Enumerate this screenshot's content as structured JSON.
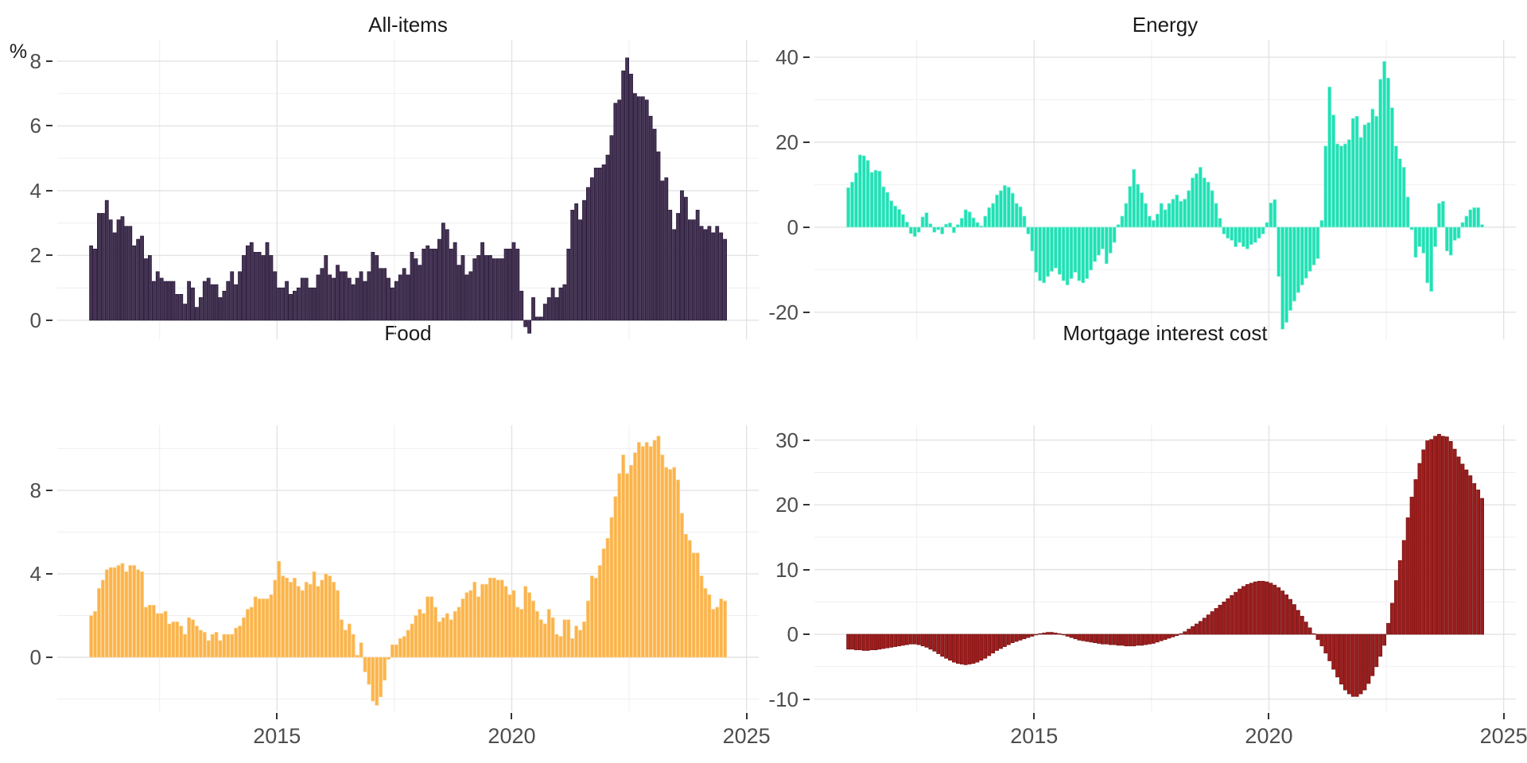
{
  "page": {
    "background": "#FFFFFF",
    "grid_major_color": "#E3E3E3",
    "grid_minor_color": "#EFEFEF",
    "axis_text_color": "#4D4D4D",
    "title_text_color": "#1A1A1A"
  },
  "chart_data": [
    {
      "type": "bar",
      "title": "All-items",
      "ylabel": "%",
      "frequency": "monthly",
      "x_start": "2011-01",
      "x_end": "2024-07",
      "x_tick_labels": [
        "2015",
        "2020",
        "2025"
      ],
      "x_ticks": [
        2015,
        2020,
        2025
      ],
      "x_minor": [
        2012.5,
        2017.5,
        2022.5
      ],
      "y_ticks": [
        0,
        2,
        4,
        6,
        8
      ],
      "y_minor": [
        1,
        3,
        5,
        7
      ],
      "ylim": [
        -0.59,
        8.66
      ],
      "bar_color": "#453354",
      "bar_edge_color": "#231434",
      "values": [
        2.3,
        2.2,
        3.3,
        3.3,
        3.7,
        3.1,
        2.7,
        3.1,
        3.2,
        2.9,
        2.9,
        2.3,
        2.5,
        2.6,
        1.9,
        2.0,
        1.2,
        1.5,
        1.3,
        1.2,
        1.2,
        1.2,
        0.8,
        0.8,
        0.5,
        1.2,
        1.0,
        0.4,
        0.7,
        1.2,
        1.3,
        1.1,
        1.1,
        0.7,
        0.9,
        1.2,
        1.5,
        1.1,
        1.5,
        2.0,
        2.3,
        2.4,
        2.1,
        2.1,
        2.0,
        2.4,
        2.0,
        1.5,
        1.0,
        1.0,
        1.2,
        0.8,
        0.9,
        1.0,
        1.3,
        1.3,
        1.0,
        1.0,
        1.4,
        1.6,
        2.0,
        1.4,
        1.3,
        1.7,
        1.5,
        1.5,
        1.3,
        1.1,
        1.3,
        1.5,
        1.2,
        1.5,
        2.1,
        2.0,
        1.6,
        1.6,
        1.3,
        1.0,
        1.2,
        1.4,
        1.6,
        1.4,
        2.1,
        1.9,
        1.7,
        2.2,
        2.3,
        2.2,
        2.2,
        2.5,
        3.0,
        2.8,
        2.2,
        2.4,
        1.7,
        2.0,
        1.4,
        1.5,
        1.9,
        2.0,
        2.4,
        2.0,
        2.0,
        1.9,
        1.9,
        1.9,
        2.2,
        2.2,
        2.4,
        2.2,
        0.9,
        -0.2,
        -0.4,
        0.7,
        0.1,
        0.1,
        0.5,
        0.7,
        1.0,
        0.7,
        1.0,
        1.1,
        2.2,
        3.4,
        3.6,
        3.1,
        3.7,
        4.1,
        4.4,
        4.7,
        4.7,
        4.8,
        5.1,
        5.7,
        6.7,
        6.8,
        7.7,
        8.1,
        7.6,
        7.0,
        6.9,
        6.9,
        6.8,
        6.3,
        5.9,
        5.2,
        4.3,
        4.4,
        3.4,
        2.8,
        3.3,
        4.0,
        3.8,
        3.1,
        3.1,
        3.4,
        2.9,
        2.8,
        2.9,
        2.7,
        2.9,
        2.7,
        2.5
      ]
    },
    {
      "type": "bar",
      "title": "Energy",
      "ylabel": "",
      "frequency": "monthly",
      "x_start": "2011-01",
      "x_end": "2024-07",
      "x_tick_labels": [
        "2015",
        "2020",
        "2025"
      ],
      "x_ticks": [
        2015,
        2020,
        2025
      ],
      "x_minor": [
        2012.5,
        2017.5,
        2022.5
      ],
      "y_ticks": [
        -20,
        0,
        20,
        40
      ],
      "y_minor": [
        -10,
        10,
        30
      ],
      "ylim": [
        -26.4,
        44.1
      ],
      "bar_color": "#21E0B4",
      "bar_edge_color": "#8CF2DC",
      "values": [
        9.3,
        10.6,
        12.8,
        17.0,
        16.8,
        15.7,
        12.9,
        13.4,
        13.2,
        9.5,
        8.2,
        6.2,
        5.0,
        4.2,
        3.0,
        1.2,
        -1.5,
        -2.2,
        -1.2,
        2.4,
        3.4,
        0.8,
        -1.2,
        -0.6,
        -1.6,
        0.7,
        1.0,
        -1.3,
        0.6,
        2.1,
        4.1,
        3.6,
        2.2,
        1.1,
        0.3,
        2.6,
        4.6,
        5.6,
        7.6,
        8.6,
        9.8,
        9.4,
        8.0,
        5.6,
        4.8,
        2.6,
        -1.6,
        -5.6,
        -10.6,
        -12.6,
        -13.1,
        -11.6,
        -10.4,
        -9.6,
        -11.1,
        -12.6,
        -13.6,
        -12.1,
        -10.6,
        -12.6,
        -13.1,
        -12.1,
        -10.1,
        -8.1,
        -6.6,
        -5.1,
        -8.6,
        -6.1,
        -3.6,
        0.6,
        2.6,
        5.6,
        9.6,
        13.6,
        10.1,
        8.1,
        5.6,
        2.6,
        1.6,
        3.1,
        5.6,
        4.1,
        5.6,
        6.6,
        7.6,
        6.1,
        6.6,
        8.6,
        11.6,
        12.6,
        14.1,
        11.6,
        10.6,
        8.6,
        5.6,
        2.1,
        -1.6,
        -2.6,
        -3.1,
        -4.6,
        -3.6,
        -4.6,
        -5.1,
        -4.1,
        -3.6,
        -2.6,
        -1.6,
        1.1,
        5.7,
        6.5,
        -11.6,
        -24.0,
        -22.4,
        -19.6,
        -17.4,
        -15.4,
        -13.6,
        -12.0,
        -10.4,
        -8.9,
        -7.4,
        1.6,
        19.1,
        33.0,
        26.4,
        19.6,
        19.1,
        19.6,
        20.6,
        25.6,
        26.1,
        21.1,
        24.1,
        24.6,
        27.8,
        26.1,
        34.8,
        39.0,
        35.1,
        28.1,
        19.1,
        16.1,
        14.1,
        7.1,
        -0.6,
        -7.1,
        -4.6,
        -6.1,
        -13.1,
        -15.1,
        -4.6,
        5.6,
        6.1,
        -5.6,
        -6.6,
        -3.1,
        -2.6,
        1.1,
        2.6,
        4.1,
        4.6,
        4.6,
        0.6
      ]
    },
    {
      "type": "bar",
      "title": "Food",
      "ylabel": "",
      "frequency": "monthly",
      "x_start": "2011-01",
      "x_end": "2024-07",
      "x_tick_labels": [
        "2015",
        "2020",
        "2025"
      ],
      "x_ticks": [
        2015,
        2020,
        2025
      ],
      "x_minor": [
        2012.5,
        2017.5,
        2022.5
      ],
      "y_ticks": [
        0,
        4,
        8
      ],
      "y_minor": [
        -2,
        2,
        6,
        10
      ],
      "ylim": [
        -2.59,
        11.12
      ],
      "bar_color": "#FBB44B",
      "bar_edge_color": "#FDD391",
      "values": [
        2.0,
        2.2,
        3.3,
        3.7,
        4.2,
        4.3,
        4.3,
        4.4,
        4.5,
        4.1,
        4.4,
        4.4,
        4.2,
        4.1,
        2.4,
        2.5,
        2.5,
        2.1,
        2.1,
        2.2,
        1.6,
        1.7,
        1.7,
        1.5,
        1.1,
        1.9,
        1.8,
        1.5,
        1.3,
        1.2,
        0.8,
        1.1,
        1.2,
        0.8,
        1.1,
        1.1,
        1.1,
        1.4,
        1.5,
        1.9,
        2.3,
        2.4,
        2.9,
        2.8,
        2.8,
        2.8,
        3.0,
        3.7,
        4.6,
        3.9,
        3.8,
        3.6,
        3.8,
        3.4,
        3.2,
        3.6,
        3.5,
        4.1,
        3.4,
        3.7,
        4.0,
        3.9,
        3.6,
        3.2,
        1.8,
        1.3,
        1.6,
        1.1,
        0.1,
        0.7,
        -0.7,
        -1.3,
        -2.1,
        -2.3,
        -1.9,
        -1.1,
        -0.1,
        0.6,
        0.6,
        0.9,
        1.0,
        1.3,
        1.6,
        2.0,
        2.3,
        2.1,
        2.9,
        2.9,
        2.4,
        1.7,
        1.9,
        2.1,
        1.8,
        2.2,
        2.4,
        2.8,
        3.1,
        3.2,
        3.6,
        2.9,
        3.5,
        3.5,
        3.8,
        3.8,
        3.7,
        3.7,
        3.4,
        3.0,
        3.2,
        2.4,
        2.3,
        3.4,
        3.1,
        2.7,
        2.2,
        1.8,
        1.6,
        2.3,
        1.9,
        1.1,
        1.0,
        1.8,
        1.8,
        0.9,
        1.5,
        1.3,
        1.7,
        2.7,
        3.9,
        3.8,
        4.4,
        5.2,
        5.7,
        6.7,
        7.7,
        8.8,
        9.7,
        8.8,
        9.2,
        9.8,
        10.3,
        10.1,
        10.3,
        10.1,
        10.4,
        10.6,
        9.7,
        9.1,
        9.0,
        9.1,
        8.5,
        6.9,
        5.9,
        5.6,
        5.0,
        5.0,
        3.9,
        3.3,
        3.0,
        2.3,
        2.4,
        2.8,
        2.7
      ]
    },
    {
      "type": "bar",
      "title": "Mortgage interest cost",
      "ylabel": "",
      "frequency": "monthly",
      "x_start": "2011-01",
      "x_end": "2024-07",
      "x_tick_labels": [
        "2015",
        "2020",
        "2025"
      ],
      "x_ticks": [
        2015,
        2020,
        2025
      ],
      "x_minor": [
        2012.5,
        2017.5,
        2022.5
      ],
      "y_ticks": [
        -10,
        0,
        10,
        20,
        30
      ],
      "y_minor": [
        -5,
        5,
        15,
        25
      ],
      "ylim": [
        -11.9,
        32.3
      ],
      "bar_color": "#9E1D1D",
      "bar_edge_color": "#751111",
      "values": [
        -2.3,
        -2.3,
        -2.4,
        -2.4,
        -2.5,
        -2.5,
        -2.4,
        -2.4,
        -2.3,
        -2.2,
        -2.1,
        -2.0,
        -1.9,
        -1.8,
        -1.7,
        -1.6,
        -1.5,
        -1.5,
        -1.6,
        -1.8,
        -2.0,
        -2.3,
        -2.6,
        -3.0,
        -3.4,
        -3.7,
        -4.0,
        -4.3,
        -4.5,
        -4.6,
        -4.7,
        -4.6,
        -4.5,
        -4.3,
        -4.0,
        -3.7,
        -3.3,
        -2.9,
        -2.5,
        -2.2,
        -1.9,
        -1.6,
        -1.3,
        -1.1,
        -0.9,
        -0.7,
        -0.5,
        -0.3,
        -0.1,
        0.1,
        0.2,
        0.3,
        0.3,
        0.2,
        0.1,
        -0.1,
        -0.3,
        -0.5,
        -0.7,
        -0.9,
        -1.0,
        -1.1,
        -1.2,
        -1.3,
        -1.4,
        -1.5,
        -1.5,
        -1.6,
        -1.6,
        -1.7,
        -1.7,
        -1.8,
        -1.8,
        -1.8,
        -1.7,
        -1.7,
        -1.6,
        -1.5,
        -1.4,
        -1.2,
        -1.0,
        -0.8,
        -0.6,
        -0.4,
        -0.2,
        0.1,
        0.4,
        0.8,
        1.2,
        1.6,
        2.0,
        2.5,
        3.0,
        3.5,
        4.0,
        4.5,
        5.0,
        5.5,
        6.0,
        6.5,
        7.0,
        7.4,
        7.7,
        7.9,
        8.1,
        8.2,
        8.2,
        8.1,
        7.9,
        7.6,
        7.2,
        6.7,
        6.1,
        5.4,
        4.6,
        3.7,
        2.8,
        1.9,
        1.0,
        0.1,
        -0.8,
        -1.8,
        -2.9,
        -4.1,
        -5.4,
        -6.6,
        -7.7,
        -8.6,
        -9.2,
        -9.6,
        -9.6,
        -9.2,
        -8.6,
        -7.6,
        -6.4,
        -5.0,
        -3.4,
        -1.7,
        1.7,
        4.8,
        8.3,
        11.4,
        14.5,
        18.0,
        21.2,
        23.9,
        26.4,
        28.5,
        29.9,
        30.1,
        30.6,
        30.9,
        30.6,
        30.5,
        29.8,
        28.6,
        27.4,
        26.3,
        25.4,
        24.5,
        23.3,
        22.3,
        21.0
      ]
    }
  ]
}
